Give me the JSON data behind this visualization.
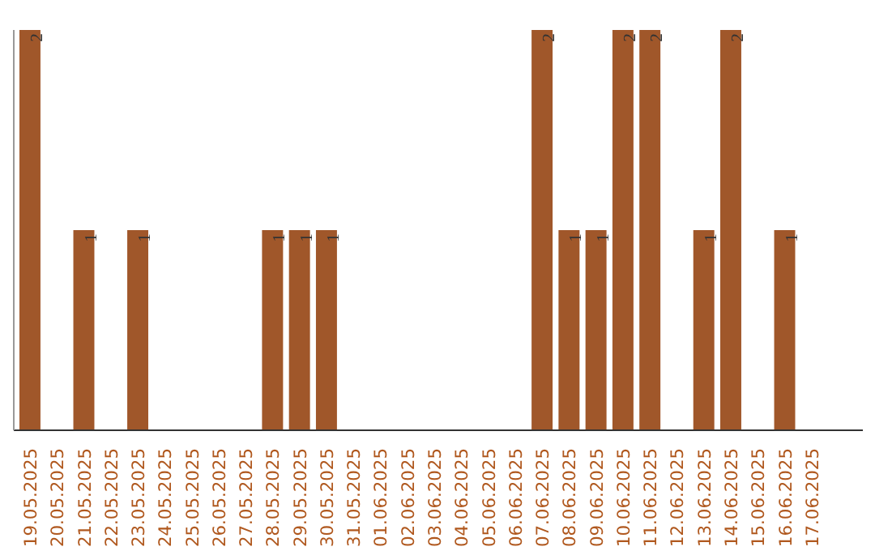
{
  "chart_data": {
    "type": "bar",
    "categories": [
      "19.05.2025",
      "20.05.2025",
      "21.05.2025",
      "22.05.2025",
      "23.05.2025",
      "24.05.2025",
      "25.05.2025",
      "26.05.2025",
      "27.05.2025",
      "28.05.2025",
      "29.05.2025",
      "30.05.2025",
      "31.05.2025",
      "01.06.2025",
      "02.06.2025",
      "03.06.2025",
      "04.06.2025",
      "05.06.2025",
      "06.06.2025",
      "07.06.2025",
      "08.06.2025",
      "09.06.2025",
      "10.06.2025",
      "11.06.2025",
      "12.06.2025",
      "13.06.2025",
      "14.06.2025",
      "15.06.2025",
      "16.06.2025",
      "17.06.2025"
    ],
    "values": [
      2,
      0,
      1,
      0,
      1,
      0,
      0,
      0,
      0,
      1,
      1,
      1,
      0,
      0,
      0,
      0,
      0,
      0,
      0,
      2,
      1,
      1,
      2,
      2,
      0,
      1,
      2,
      0,
      1,
      0
    ],
    "value_labels": [
      "2",
      null,
      "1",
      null,
      "1",
      null,
      null,
      null,
      null,
      "1",
      "1",
      "1",
      null,
      null,
      null,
      null,
      null,
      null,
      null,
      "2",
      "1",
      "1",
      "2",
      "2",
      null,
      "1",
      "2",
      null,
      "1",
      null
    ],
    "color": "#a0572a",
    "grid": false,
    "tick_labels": "x"
  }
}
